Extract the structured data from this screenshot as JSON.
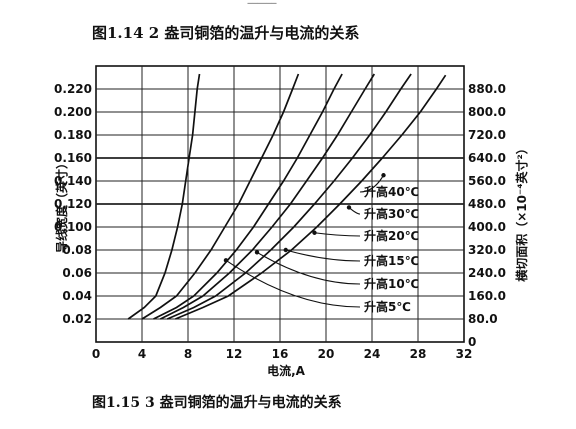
{
  "header_fragment": "──────",
  "caption_top": "图1.14  2 盎司铜箔的温升与电流的关系",
  "caption_bottom": "图1.15  3 盎司铜箔的温升与电流的关系",
  "chart_data": {
    "type": "line",
    "xlabel": "电流,A",
    "ylabel": "导线宽度（英寸）",
    "y2label": "横切面积（×10⁻⁴英寸²）",
    "xlim": [
      0,
      32
    ],
    "ylim": [
      0,
      0.24
    ],
    "y2lim": [
      0,
      960
    ],
    "x_ticks": [
      "0",
      "4",
      "8",
      "12",
      "16",
      "20",
      "24",
      "28",
      "32"
    ],
    "y_ticks": [
      "0.02",
      "0.04",
      "0.06",
      "0.08",
      "0.100",
      "0.120",
      "0.140",
      "0.160",
      "0.180",
      "0.200",
      "0.220"
    ],
    "y2_ticks": [
      "0",
      "80.0",
      "160.0",
      "240.0",
      "320.0",
      "400.0",
      "480.0",
      "560.0",
      "640.0",
      "720.0",
      "800.0",
      "880.0"
    ],
    "grid": true,
    "series": [
      {
        "name": "升高5℃",
        "points": [
          [
            2.8,
            0.02
          ],
          [
            4.2,
            0.03
          ],
          [
            5.2,
            0.04
          ],
          [
            6.0,
            0.06
          ],
          [
            6.6,
            0.08
          ],
          [
            7.1,
            0.1
          ],
          [
            7.5,
            0.12
          ],
          [
            7.8,
            0.14
          ],
          [
            8.1,
            0.16
          ],
          [
            8.4,
            0.18
          ],
          [
            8.6,
            0.2
          ],
          [
            8.8,
            0.22
          ],
          [
            9.0,
            0.233
          ]
        ]
      },
      {
        "name": "升高10℃",
        "points": [
          [
            4.0,
            0.02
          ],
          [
            5.6,
            0.03
          ],
          [
            7.0,
            0.04
          ],
          [
            8.6,
            0.06
          ],
          [
            10.0,
            0.08
          ],
          [
            11.2,
            0.1
          ],
          [
            12.4,
            0.12
          ],
          [
            13.4,
            0.14
          ],
          [
            14.4,
            0.16
          ],
          [
            15.4,
            0.18
          ],
          [
            16.3,
            0.2
          ],
          [
            17.1,
            0.22
          ],
          [
            17.6,
            0.233
          ]
        ]
      },
      {
        "name": "升高15℃",
        "points": [
          [
            5.0,
            0.02
          ],
          [
            7.0,
            0.03
          ],
          [
            8.5,
            0.04
          ],
          [
            10.5,
            0.06
          ],
          [
            12.2,
            0.08
          ],
          [
            13.7,
            0.1
          ],
          [
            15.0,
            0.12
          ],
          [
            16.3,
            0.14
          ],
          [
            17.5,
            0.16
          ],
          [
            18.6,
            0.18
          ],
          [
            19.7,
            0.2
          ],
          [
            20.7,
            0.22
          ],
          [
            21.4,
            0.233
          ]
        ]
      },
      {
        "name": "升高20℃",
        "points": [
          [
            5.6,
            0.02
          ],
          [
            7.6,
            0.03
          ],
          [
            9.3,
            0.04
          ],
          [
            11.6,
            0.06
          ],
          [
            13.6,
            0.08
          ],
          [
            15.3,
            0.1
          ],
          [
            16.9,
            0.12
          ],
          [
            18.3,
            0.14
          ],
          [
            19.7,
            0.16
          ],
          [
            21.0,
            0.18
          ],
          [
            22.2,
            0.2
          ],
          [
            23.4,
            0.22
          ],
          [
            24.2,
            0.233
          ]
        ]
      },
      {
        "name": "升高30℃",
        "points": [
          [
            6.2,
            0.02
          ],
          [
            8.5,
            0.03
          ],
          [
            10.4,
            0.04
          ],
          [
            13.0,
            0.06
          ],
          [
            15.2,
            0.08
          ],
          [
            17.2,
            0.1
          ],
          [
            19.0,
            0.12
          ],
          [
            20.7,
            0.14
          ],
          [
            22.3,
            0.16
          ],
          [
            23.8,
            0.18
          ],
          [
            25.2,
            0.2
          ],
          [
            26.5,
            0.22
          ],
          [
            27.4,
            0.233
          ]
        ]
      },
      {
        "name": "升高40℃",
        "points": [
          [
            6.9,
            0.02
          ],
          [
            9.3,
            0.03
          ],
          [
            11.5,
            0.04
          ],
          [
            14.4,
            0.06
          ],
          [
            17.0,
            0.08
          ],
          [
            19.2,
            0.1
          ],
          [
            21.2,
            0.12
          ],
          [
            23.1,
            0.14
          ],
          [
            24.9,
            0.16
          ],
          [
            26.6,
            0.18
          ],
          [
            28.2,
            0.2
          ],
          [
            29.6,
            0.22
          ],
          [
            30.4,
            0.232
          ]
        ]
      }
    ],
    "annotations": [
      {
        "label": "升高40℃",
        "series": "升高40℃"
      },
      {
        "label": "升高30℃",
        "series": "升高30℃"
      },
      {
        "label": "升高20℃",
        "series": "升高20℃"
      },
      {
        "label": "升高15℃",
        "series": "升高15℃"
      },
      {
        "label": "升高10℃",
        "series": "升高10℃"
      },
      {
        "label": "升高5℃",
        "series": "升高5℃"
      }
    ]
  }
}
